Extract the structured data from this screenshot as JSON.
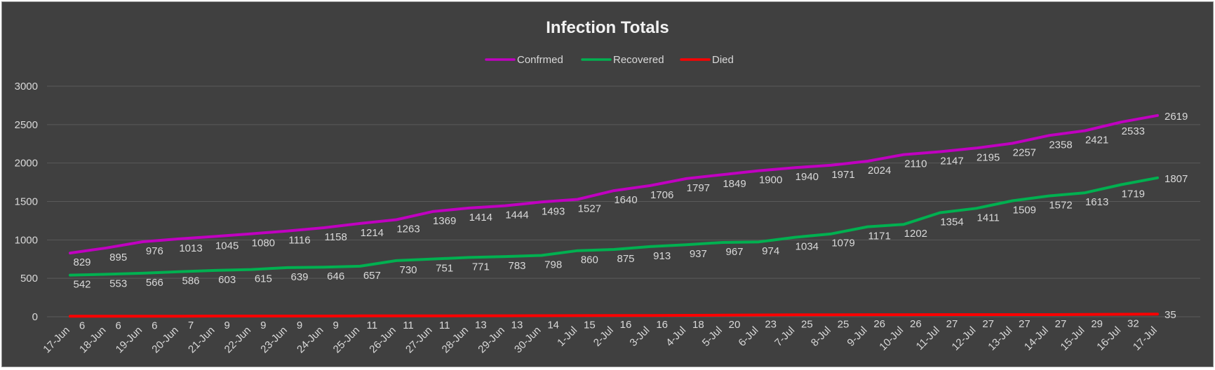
{
  "chart_data": {
    "type": "line",
    "title": "Infection Totals",
    "xlabel": "",
    "ylabel": "",
    "ylim": [
      0,
      3000
    ],
    "yticks": [
      "0",
      "500",
      "1000",
      "1500",
      "2000",
      "2500",
      "3000"
    ],
    "grid": true,
    "legend_position": "top",
    "categories": [
      "17-Jun",
      "18-Jun",
      "19-Jun",
      "20-Jun",
      "21-Jun",
      "22-Jun",
      "23-Jun",
      "24-Jun",
      "25-Jun",
      "26-Jun",
      "27-Jun",
      "28-Jun",
      "29-Jun",
      "30-Jun",
      "1-Jul",
      "2-Jul",
      "3-Jul",
      "4-Jul",
      "5-Jul",
      "6-Jul",
      "7-Jul",
      "8-Jul",
      "9-Jul",
      "10-Jul",
      "11-Jul",
      "12-Jul",
      "13-Jul",
      "14-Jul",
      "15-Jul",
      "16-Jul",
      "17-Jul"
    ],
    "series": [
      {
        "name": "Confrmed",
        "color": "#c000c0",
        "values": [
          829,
          895,
          976,
          1013,
          1045,
          1080,
          1116,
          1158,
          1214,
          1263,
          1369,
          1414,
          1444,
          1493,
          1527,
          1640,
          1706,
          1797,
          1849,
          1900,
          1940,
          1971,
          2024,
          2110,
          2147,
          2195,
          2257,
          2358,
          2421,
          2533,
          2619
        ]
      },
      {
        "name": "Recovered",
        "color": "#00b050",
        "values": [
          542,
          553,
          566,
          586,
          603,
          615,
          639,
          646,
          657,
          730,
          751,
          771,
          783,
          798,
          860,
          875,
          913,
          937,
          967,
          974,
          1034,
          1079,
          1171,
          1202,
          1354,
          1411,
          1509,
          1572,
          1613,
          1719,
          1807
        ]
      },
      {
        "name": "Died",
        "color": "#ff0000",
        "values": [
          6,
          6,
          6,
          7,
          9,
          9,
          9,
          9,
          11,
          11,
          11,
          13,
          13,
          14,
          15,
          16,
          16,
          18,
          20,
          23,
          25,
          25,
          26,
          26,
          27,
          27,
          27,
          27,
          29,
          32,
          35
        ]
      }
    ]
  }
}
